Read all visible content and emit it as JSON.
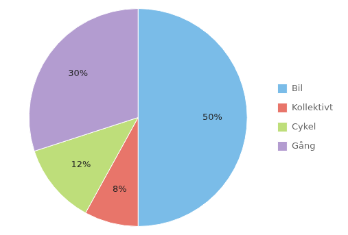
{
  "chart_data": {
    "type": "pie",
    "categories": [
      "Bil",
      "Kollektivt",
      "Cykel",
      "Gång"
    ],
    "values": [
      50,
      8,
      12,
      30
    ],
    "value_labels": [
      "50%",
      "8%",
      "12%",
      "30%"
    ],
    "colors": [
      "#7ABCE8",
      "#E8756A",
      "#BEDE7A",
      "#B39CD0"
    ],
    "data_labels": true,
    "legend": "right"
  }
}
